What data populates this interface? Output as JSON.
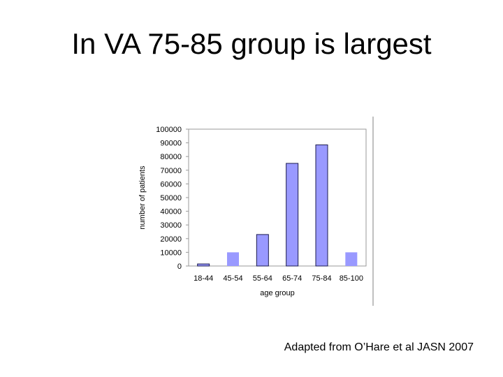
{
  "slide": {
    "title": "In VA 75-85 group is largest",
    "credit": "Adapted from O’Hare et al JASN 2007"
  },
  "chart_data": {
    "type": "bar",
    "title": "",
    "xlabel": "age group",
    "ylabel": "number of patients",
    "categories": [
      "18-44",
      "45-54",
      "55-64",
      "65-74",
      "75-84",
      "85-100"
    ],
    "values": [
      1500,
      10000,
      23000,
      75000,
      88500,
      10000
    ],
    "ylim": [
      0,
      100000
    ],
    "yticks": [
      0,
      10000,
      20000,
      30000,
      40000,
      50000,
      60000,
      70000,
      80000,
      90000,
      100000
    ],
    "grid": false,
    "legend": "none",
    "colors": {
      "bar_outlined": "#9999ff",
      "bar_plain": "#9999ff",
      "bar_edge": "#1a1a4d",
      "axis": "#808080"
    }
  }
}
